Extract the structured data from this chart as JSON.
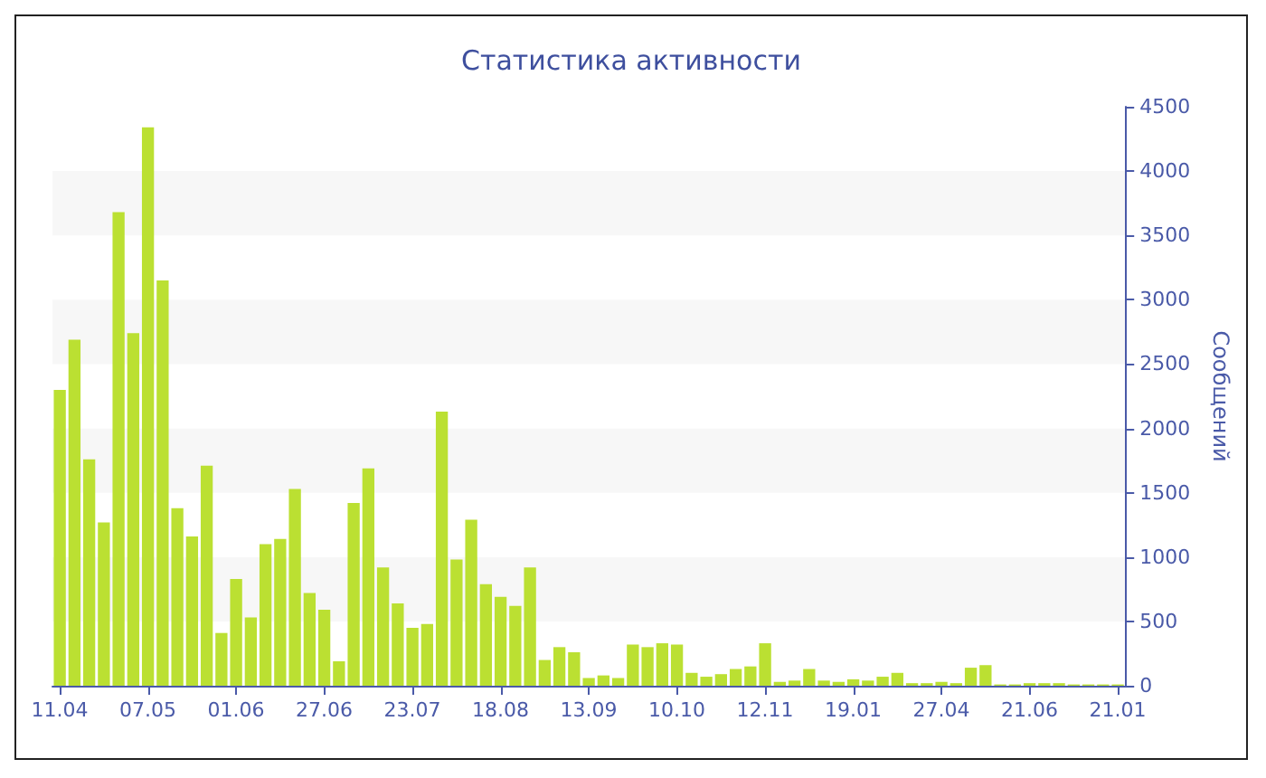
{
  "chart_data": {
    "type": "bar",
    "title": "Статистика активности",
    "ylabel": "Сообщений",
    "color": "#bbe032",
    "categories": [
      "11.04",
      null,
      null,
      null,
      null,
      null,
      "07.05",
      null,
      null,
      null,
      null,
      null,
      "01.06",
      null,
      null,
      null,
      null,
      null,
      "27.06",
      null,
      null,
      null,
      null,
      null,
      "23.07",
      null,
      null,
      null,
      null,
      null,
      "18.08",
      null,
      null,
      null,
      null,
      null,
      "13.09",
      null,
      null,
      null,
      null,
      null,
      "10.10",
      null,
      null,
      null,
      null,
      null,
      "12.11",
      null,
      null,
      null,
      null,
      null,
      "19.01",
      null,
      null,
      null,
      null,
      null,
      "27.04",
      null,
      null,
      null,
      null,
      null,
      "21.06",
      null,
      null,
      null,
      null,
      null,
      "21.01"
    ],
    "values": [
      2300,
      2690,
      1760,
      1270,
      3680,
      2740,
      4340,
      3150,
      1380,
      1160,
      1710,
      410,
      830,
      530,
      1100,
      1140,
      1530,
      720,
      590,
      190,
      1420,
      1690,
      920,
      640,
      450,
      480,
      2130,
      980,
      1290,
      790,
      690,
      620,
      920,
      200,
      300,
      260,
      60,
      80,
      60,
      320,
      300,
      330,
      320,
      100,
      70,
      90,
      130,
      150,
      330,
      30,
      40,
      130,
      40,
      30,
      50,
      40,
      70,
      100,
      20,
      20,
      30,
      20,
      140,
      160,
      10,
      10,
      20,
      20,
      20,
      10,
      10,
      10,
      10
    ],
    "ylim": [
      0,
      4500
    ],
    "yticks": [
      0,
      500,
      1000,
      1500,
      2000,
      2500,
      3000,
      3500,
      4000,
      4500
    ]
  }
}
